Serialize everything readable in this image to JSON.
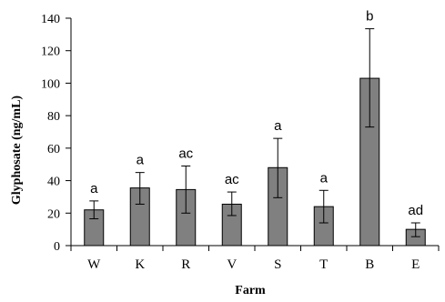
{
  "chart_data": {
    "type": "bar",
    "xlabel": "Farm",
    "ylabel": "Glyphosate (ng/mL)",
    "ylim": [
      0,
      140
    ],
    "yticks": [
      0,
      20,
      40,
      60,
      80,
      100,
      120,
      140
    ],
    "grid": false,
    "bar_color": "#808080",
    "categories": [
      "W",
      "K",
      "R",
      "V",
      "S",
      "T",
      "B",
      "E"
    ],
    "values": [
      22,
      35.5,
      34.5,
      25.5,
      48,
      24,
      103,
      10
    ],
    "error_low": [
      16.5,
      25.5,
      20,
      18.5,
      29.5,
      14,
      73,
      5.5
    ],
    "error_high": [
      27.5,
      45,
      49,
      33,
      66,
      34,
      133.5,
      14
    ],
    "significance_labels": [
      "a",
      "a",
      "ac",
      "ac",
      "a",
      "a",
      "b",
      "ad"
    ]
  }
}
